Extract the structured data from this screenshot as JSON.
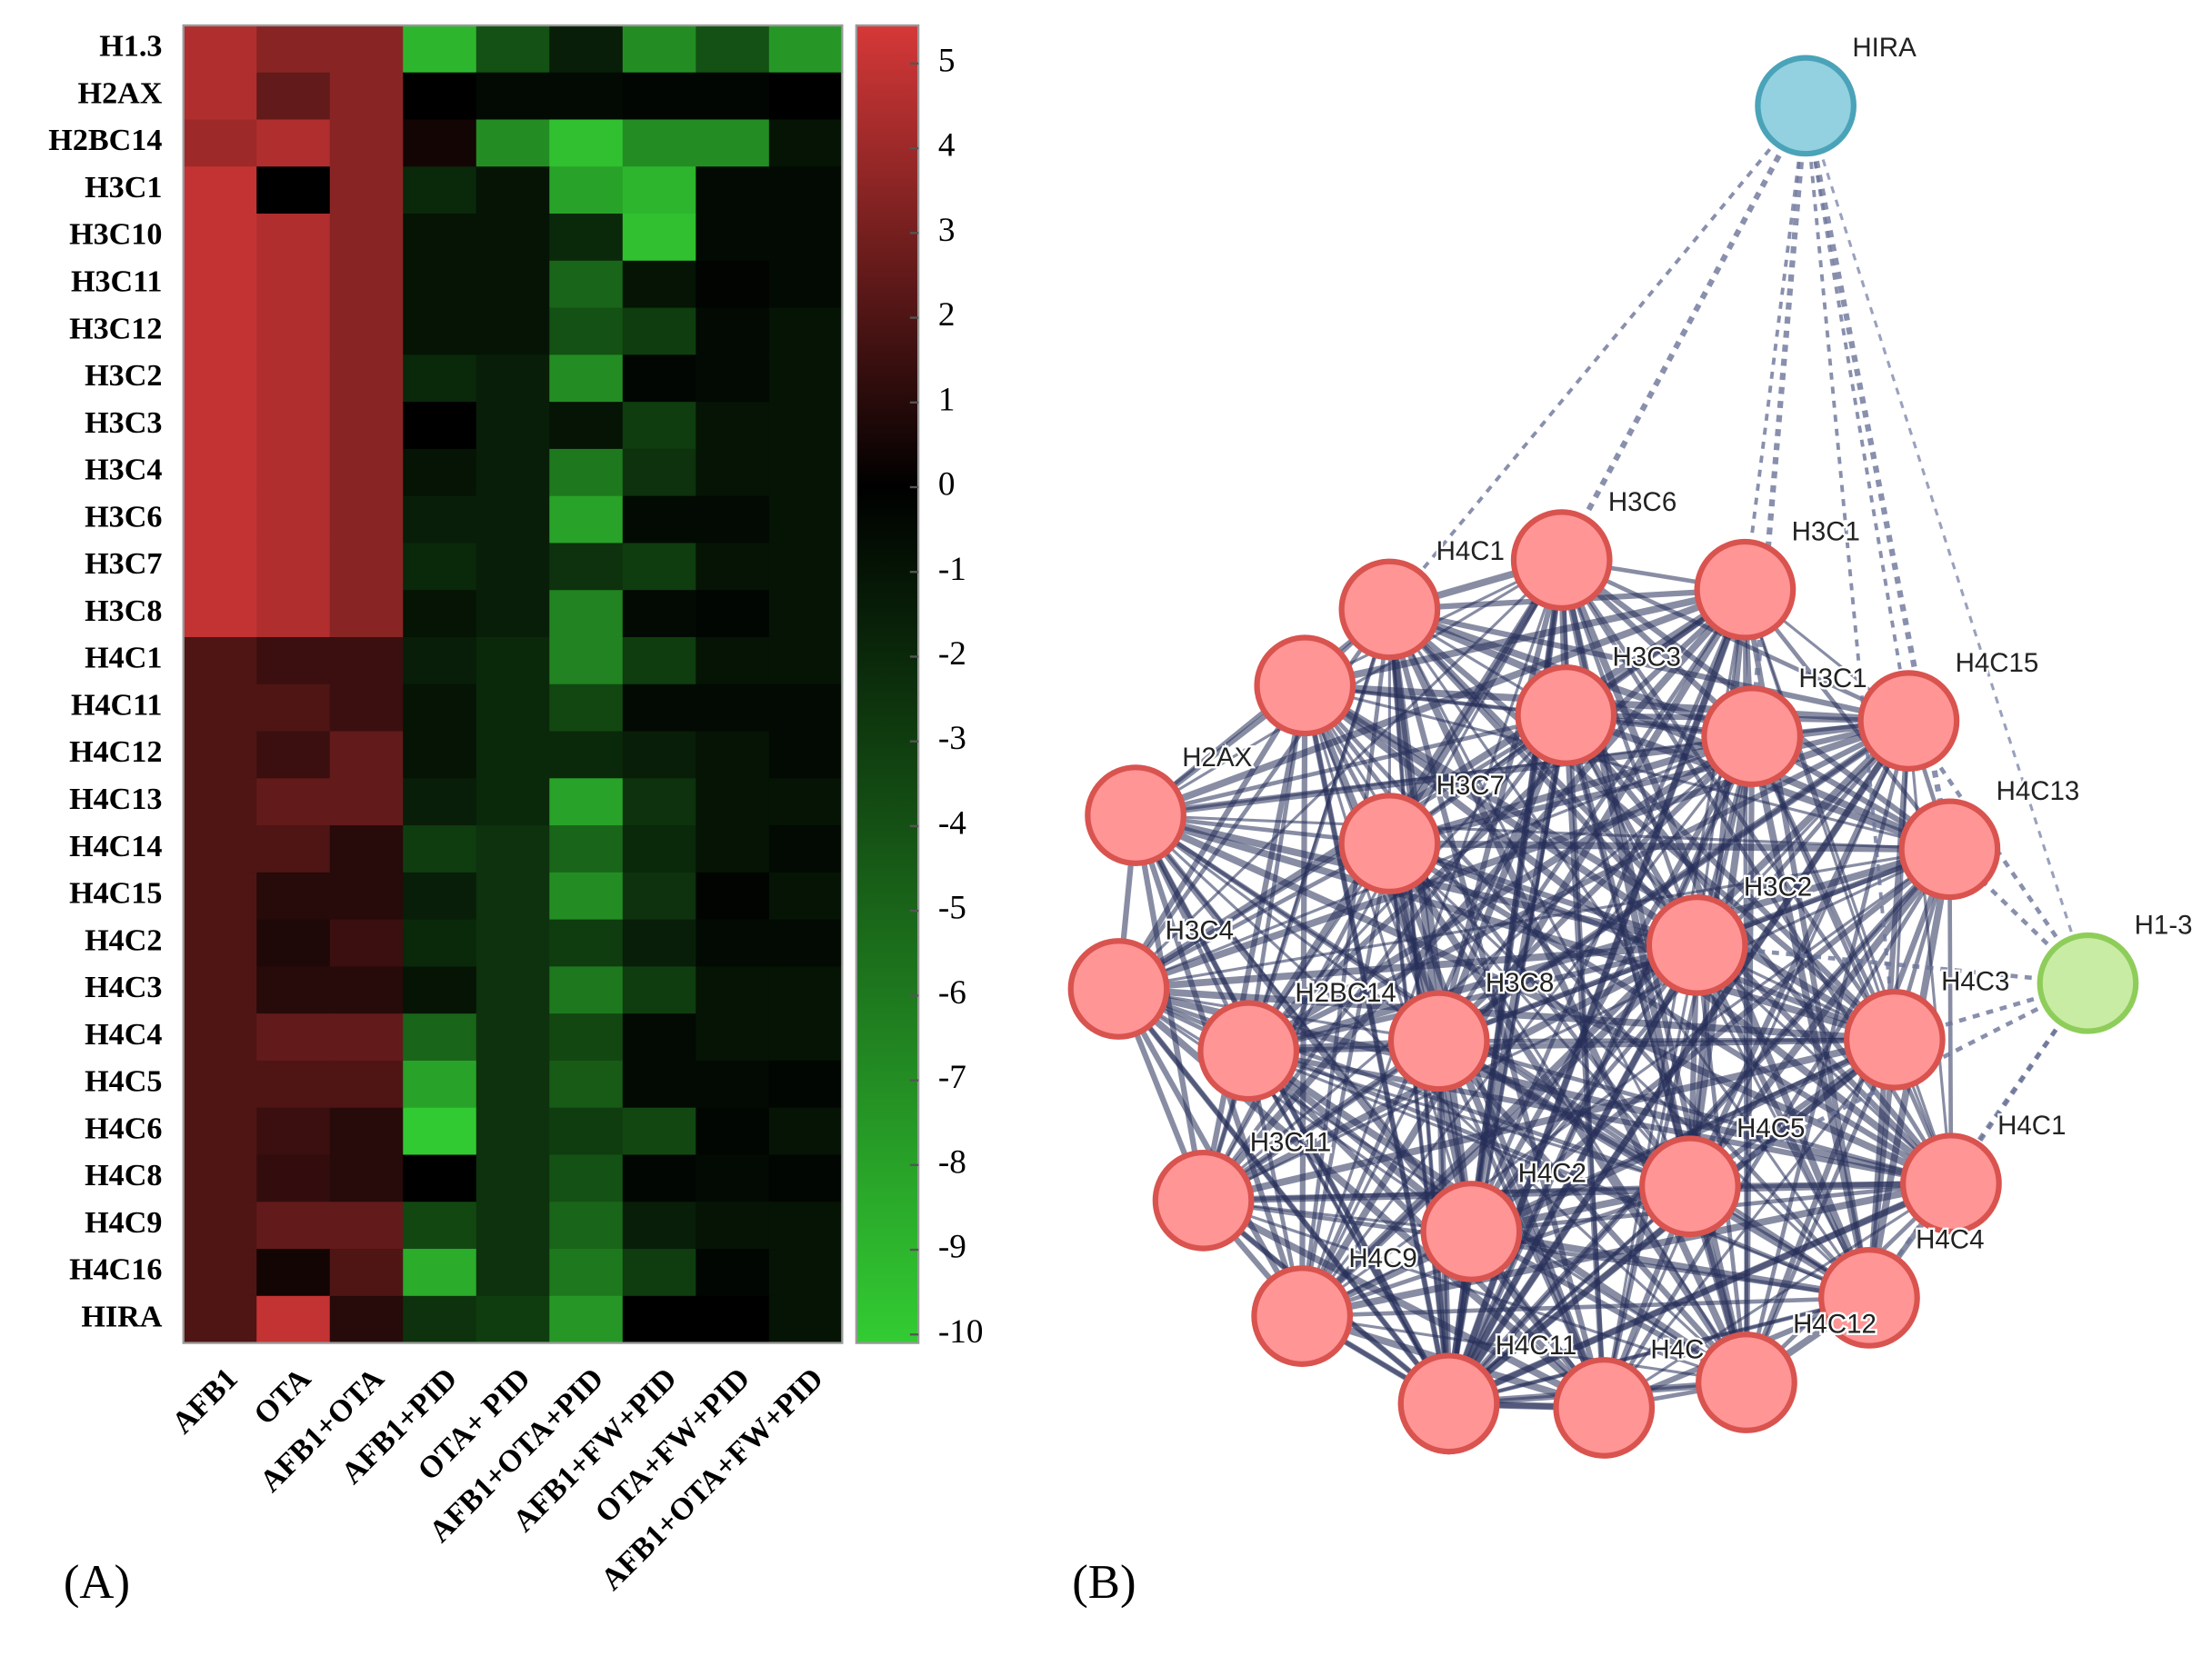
{
  "chart_data": {
    "type": "heatmap",
    "rows": [
      "H1.3",
      "H2AX",
      "H2BC14",
      "H3C1",
      "H3C10",
      "H3C11",
      "H3C12",
      "H3C2",
      "H3C3",
      "H3C4",
      "H3C6",
      "H3C7",
      "H3C8",
      "H4C1",
      "H4C11",
      "H4C12",
      "H4C13",
      "H4C14",
      "H4C15",
      "H4C2",
      "H4C3",
      "H4C4",
      "H4C5",
      "H4C6",
      "H4C8",
      "H4C9",
      "H4C16",
      "HIRA"
    ],
    "columns": [
      "AFB1",
      "OTA",
      "AFB1+OTA",
      "AFB1+PID",
      "OTA+ PID",
      "AFB1+OTA+PID",
      "AFB1+FW+PID",
      "OTA+FW+PID",
      "AFB1+OTA+FW+PID"
    ],
    "values": [
      [
        4.5,
        3.5,
        3.5,
        -9,
        -4,
        -1.5,
        -7,
        -4,
        -7.5
      ],
      [
        4.5,
        2.5,
        3.5,
        0,
        -0.5,
        -0.5,
        -0.3,
        -0.3,
        0
      ],
      [
        4,
        4.5,
        3.5,
        0.5,
        -7,
        -9.5,
        -7,
        -7,
        -1
      ],
      [
        5,
        0,
        3.5,
        -2,
        -1,
        -8,
        -9,
        -0.5,
        -0.5
      ],
      [
        5,
        4.5,
        3.5,
        -1,
        -1,
        -2,
        -9.5,
        -0.5,
        -0.5
      ],
      [
        5,
        4.5,
        3.5,
        -1,
        -1,
        -5,
        -1,
        -0.2,
        -0.5
      ],
      [
        5,
        4.5,
        3.5,
        -1,
        -1,
        -4,
        -3,
        -0.5,
        -1
      ],
      [
        5,
        4.5,
        3.5,
        -2,
        -1.5,
        -7,
        -0.3,
        -0.5,
        -1
      ],
      [
        5,
        4.5,
        3.5,
        0,
        -1.5,
        -1,
        -3,
        -1,
        -1
      ],
      [
        5,
        4.5,
        3.5,
        -1,
        -1.5,
        -6,
        -2.5,
        -1,
        -1
      ],
      [
        5,
        4.5,
        3.5,
        -1.5,
        -1.5,
        -8,
        -0.5,
        -0.5,
        -1
      ],
      [
        5,
        4.5,
        3.5,
        -2,
        -1.5,
        -2.5,
        -3,
        -1,
        -1
      ],
      [
        5,
        4.5,
        3.5,
        -1,
        -1.5,
        -6.5,
        -0.5,
        -0.3,
        -1
      ],
      [
        2,
        1.5,
        1.5,
        -1.5,
        -2,
        -6.5,
        -3,
        -1,
        -1
      ],
      [
        2,
        2,
        1.5,
        -1,
        -2,
        -3.5,
        -0.5,
        -0.5,
        -0.5
      ],
      [
        2,
        1.5,
        2.5,
        -1,
        -2,
        -2,
        -1.5,
        -1,
        -0.5
      ],
      [
        2,
        2.5,
        2.5,
        -1.5,
        -2,
        -8,
        -2.5,
        -1,
        -1
      ],
      [
        2,
        2,
        1,
        -3,
        -2.5,
        -5,
        -2,
        -1,
        -0.5
      ],
      [
        2,
        1,
        1,
        -1.5,
        -2.5,
        -7,
        -2.5,
        -0.2,
        -1
      ],
      [
        2,
        0.8,
        1.5,
        -2,
        -2.5,
        -3,
        -1.5,
        -0.5,
        -0.5
      ],
      [
        2,
        1,
        1,
        -1,
        -2.5,
        -6,
        -3,
        -1,
        -1
      ],
      [
        2,
        2.5,
        2.5,
        -5,
        -2.5,
        -3.5,
        -0.5,
        -1,
        -1
      ],
      [
        2,
        2,
        2,
        -8,
        -2.5,
        -4.5,
        -0.5,
        -0.5,
        -0.3
      ],
      [
        2,
        1.5,
        1,
        -10,
        -2.5,
        -3,
        -3.5,
        -0.3,
        -1
      ],
      [
        2,
        1.3,
        1,
        0,
        -2.5,
        -4,
        -0.3,
        -0.5,
        -0.3
      ],
      [
        2,
        2.5,
        2.5,
        -3.5,
        -2.5,
        -5,
        -1.5,
        -1,
        -1
      ],
      [
        2,
        0.5,
        2,
        -8.5,
        -2.5,
        -6,
        -3,
        -0.3,
        -1
      ],
      [
        2,
        5,
        1,
        -2.5,
        -3,
        -7.5,
        0,
        0,
        -1
      ]
    ],
    "zlim": [
      -10.1,
      5.45
    ],
    "zticks": [
      5,
      4,
      3,
      2,
      1,
      0,
      -1,
      -2,
      -3,
      -4,
      -5,
      -6,
      -7,
      -8,
      -9,
      -10
    ],
    "colors": {
      "high": "#d63838",
      "mid": "#000000",
      "low": "#33cc33"
    }
  },
  "panel_labels": [
    "(A)",
    "(B)"
  ],
  "network": {
    "nodes": [
      "HIRA",
      "H1-3",
      "H4C1",
      "H3C6",
      "H3C1",
      null,
      "H3C3",
      "H3C1",
      "H4C15",
      "H2AX",
      "H3C7",
      "H4C13",
      "H3C2",
      "H3C4",
      "H2BC14",
      "H3C8",
      "H4C3",
      "H3C11",
      "H4C5",
      "H4C2",
      "H4C1",
      "H4C9",
      "H4C4",
      "H4C12",
      "H4C",
      "H4C11",
      null
    ]
  }
}
